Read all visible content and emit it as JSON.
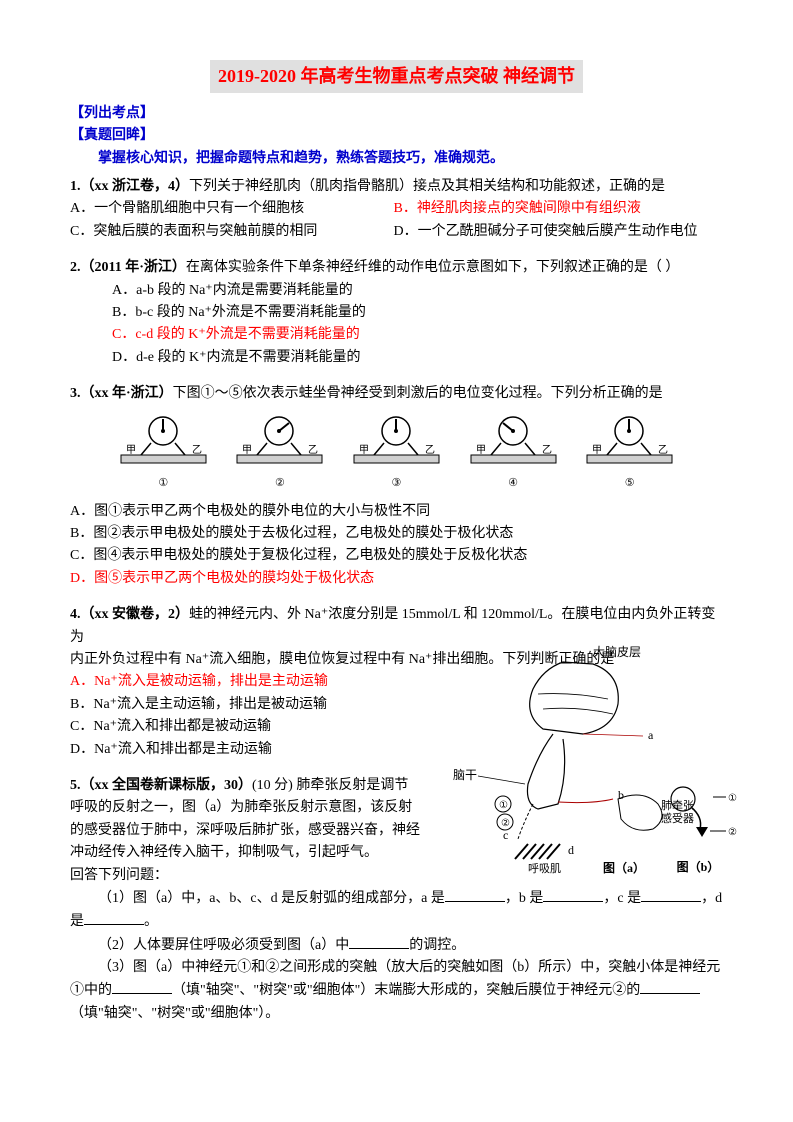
{
  "title": "2019-2020 年高考生物重点考点突破  神经调节",
  "headers": {
    "list_points": "【列出考点】",
    "review": "【真题回眸】",
    "grasp": "掌握核心知识，把握命题特点和趋势，熟练答题技巧，准确规范。"
  },
  "q1": {
    "stem_prefix": "1.（xx 浙江卷，4）",
    "stem": "下列关于神经肌肉（肌肉指骨骼肌）接点及其相关结构和功能叙述，正确的是",
    "A": "A．一个骨骼肌细胞中只有一个细胞核",
    "B": "B．神经肌肉接点的突触间隙中有组织液",
    "C": "C．突触后膜的表面积与突触前膜的相同",
    "D": "D．一个乙酰胆碱分子可使突触后膜产生动作电位"
  },
  "q2": {
    "stem_prefix": "2.（2011 年·浙江）",
    "stem": "在离体实验条件下单条神经纤维的动作电位示意图如下，下列叙述正确的是（    ）",
    "A": "A．a-b 段的 Na⁺内流是需要消耗能量的",
    "B": "B．b-c 段的 Na⁺外流是不需要消耗能量的",
    "C": "C．c-d 段的 K⁺外流是不需要消耗能量的",
    "D": "D．d-e 段的 K⁺内流是不需要消耗能量的"
  },
  "q3": {
    "stem_prefix": "3.（xx 年·浙江）",
    "stem": "下图①〜⑤依次表示蛙坐骨神经受到刺激后的电位变化过程。下列分析正确的是",
    "A": "A．图①表示甲乙两个电极处的膜外电位的大小与极性不同",
    "B": "B．图②表示甲电极处的膜处于去极化过程，乙电极处的膜处于极化状态",
    "C": "C．图④表示甲电极处的膜处于复极化过程，乙电极处的膜处于反极化状态",
    "D": "D．图⑤表示甲乙两个电极处的膜均处于极化状态",
    "labels": {
      "jia": "甲",
      "yi": "乙",
      "nums": [
        "①",
        "②",
        "③",
        "④",
        "⑤"
      ]
    },
    "needle_angles": [
      90,
      45,
      90,
      135,
      90
    ]
  },
  "q4": {
    "stem_prefix": "4.（xx 安徽卷，2）",
    "stem_1": "蛙的神经元内、外 Na⁺浓度分别是 15mmol/L 和 120mmol/L。在膜电位由内负外正转变为",
    "stem_2": "内正外负过程中有 Na⁺流入细胞，膜电位恢复过程中有 Na⁺排出细胞。下列判断正确的是",
    "A": "A．Na⁺流入是被动运输，排出是主动运输",
    "B": "B．Na⁺流入是主动运输，排出是被动运输",
    "C": "C．Na⁺流入和排出都是被动运输",
    "D": "D．Na⁺流入和排出都是主动运输",
    "labels": {
      "cortex": "大脑皮层",
      "brainstem": "脑干",
      "receptor": "肺牵张\n感受器",
      "muscle": "呼吸肌",
      "figa": "图（a）",
      "figb": "图（b）"
    }
  },
  "q5": {
    "stem_prefix": "5.（xx 全国卷新课标版，30）",
    "stem": "(10 分) 肺牵张反射是调节呼吸的反射之一，图（a）为肺牵张反射示意图，该反射的感受器位于肺中，深呼吸后肺扩张，感受器兴奋，神经冲动经传入神经传入脑干，抑制吸气，引起呼气。",
    "ask": "回答下列问题：",
    "p1_a": "（1）图（a）中，a、b、c、d 是反射弧的组成部分，a 是",
    "p1_b": "，b 是",
    "p1_c": "，c 是",
    "p1_d": "，d 是",
    "p1_e": "。",
    "p2_a": "（2）人体要屏住呼吸必须受到图（a）中",
    "p2_b": "的调控。",
    "p3_a": "（3）图（a）中神经元①和②之间形成的突触（放大后的突触如图（b）所示）中，突触小体是神经元①中的",
    "p3_b": "（填\"轴突\"、\"树突\"或\"细胞体\"）末端膨大形成的，突触后膜位于神经元②的",
    "p3_c": "（填\"轴突\"、\"树突\"或\"细胞体\"）。"
  },
  "colors": {
    "red": "#ff0000",
    "blue": "#0000cc",
    "highlight_bg": "#e0e0e0"
  }
}
